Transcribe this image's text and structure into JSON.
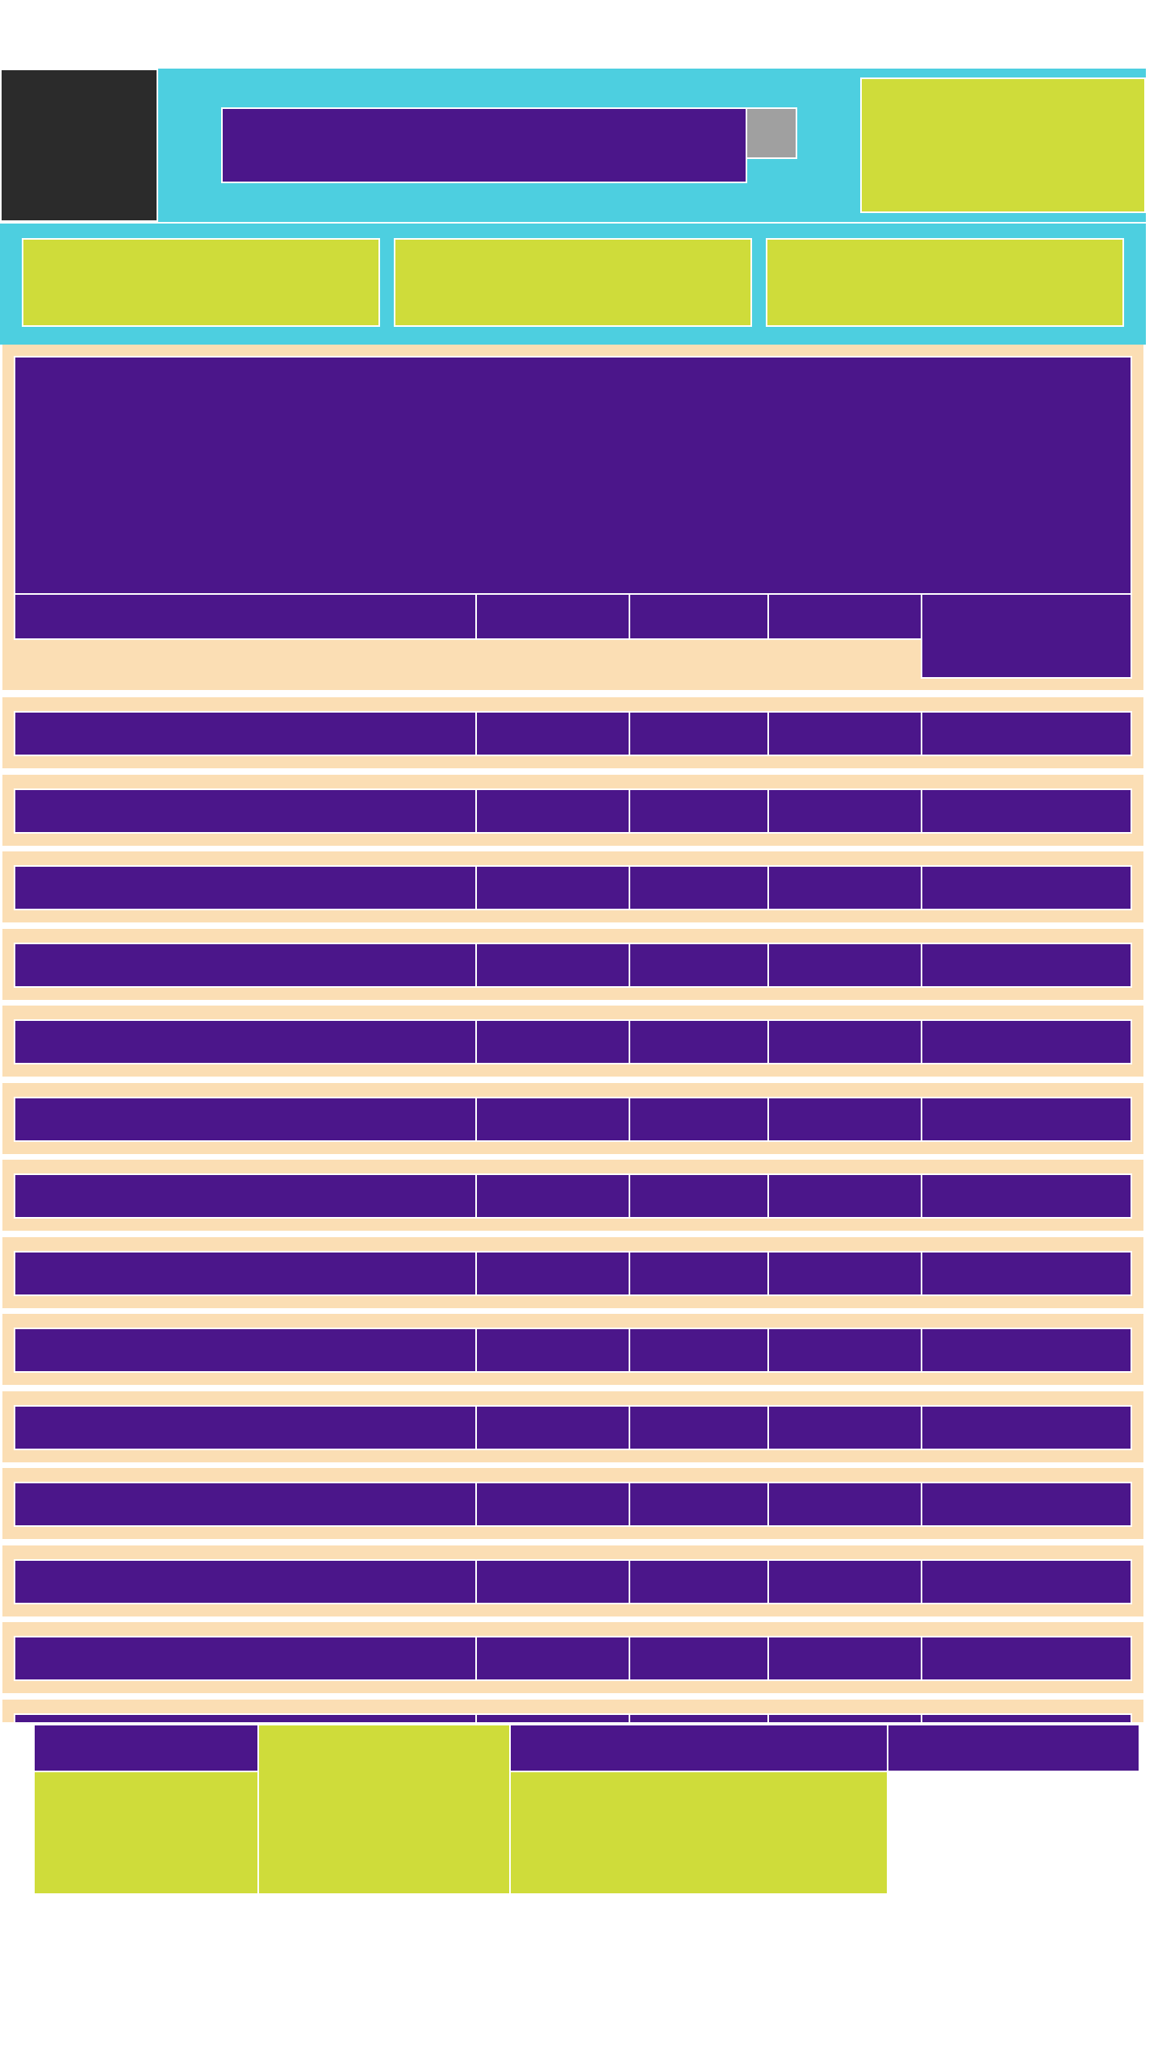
{
  "colors": {
    "header_bg": "#4dcfe0",
    "panel_bg": "#fbdeb4",
    "block_purple": "#4b168a",
    "block_lime": "#cfdc3a",
    "logo_dark": "#2b2b2b",
    "button_grey": "#a0a0a0",
    "separator": "#ffffff"
  },
  "header": {
    "logo": "",
    "search": {
      "value": "",
      "placeholder": ""
    },
    "search_button": "",
    "account": ""
  },
  "nav": {
    "tabs": [
      "",
      "",
      ""
    ]
  },
  "hero": {
    "banner": "",
    "columns": [
      "",
      "",
      "",
      ""
    ],
    "action": ""
  },
  "rows": [
    [
      "",
      "",
      "",
      "",
      ""
    ],
    [
      "",
      "",
      "",
      "",
      ""
    ],
    [
      "",
      "",
      "",
      "",
      ""
    ],
    [
      "",
      "",
      "",
      "",
      ""
    ],
    [
      "",
      "",
      "",
      "",
      ""
    ],
    [
      "",
      "",
      "",
      "",
      ""
    ],
    [
      "",
      "",
      "",
      "",
      ""
    ],
    [
      "",
      "",
      "",
      "",
      ""
    ],
    [
      "",
      "",
      "",
      "",
      ""
    ],
    [
      "",
      "",
      "",
      "",
      ""
    ],
    [
      "",
      "",
      "",
      "",
      ""
    ],
    [
      "",
      "",
      "",
      "",
      ""
    ],
    [
      "",
      "",
      "",
      "",
      ""
    ],
    [
      "",
      "",
      "",
      "",
      ""
    ]
  ],
  "footer": {
    "headings": [
      "",
      "",
      ""
    ],
    "blocks": [
      "",
      "",
      ""
    ]
  }
}
